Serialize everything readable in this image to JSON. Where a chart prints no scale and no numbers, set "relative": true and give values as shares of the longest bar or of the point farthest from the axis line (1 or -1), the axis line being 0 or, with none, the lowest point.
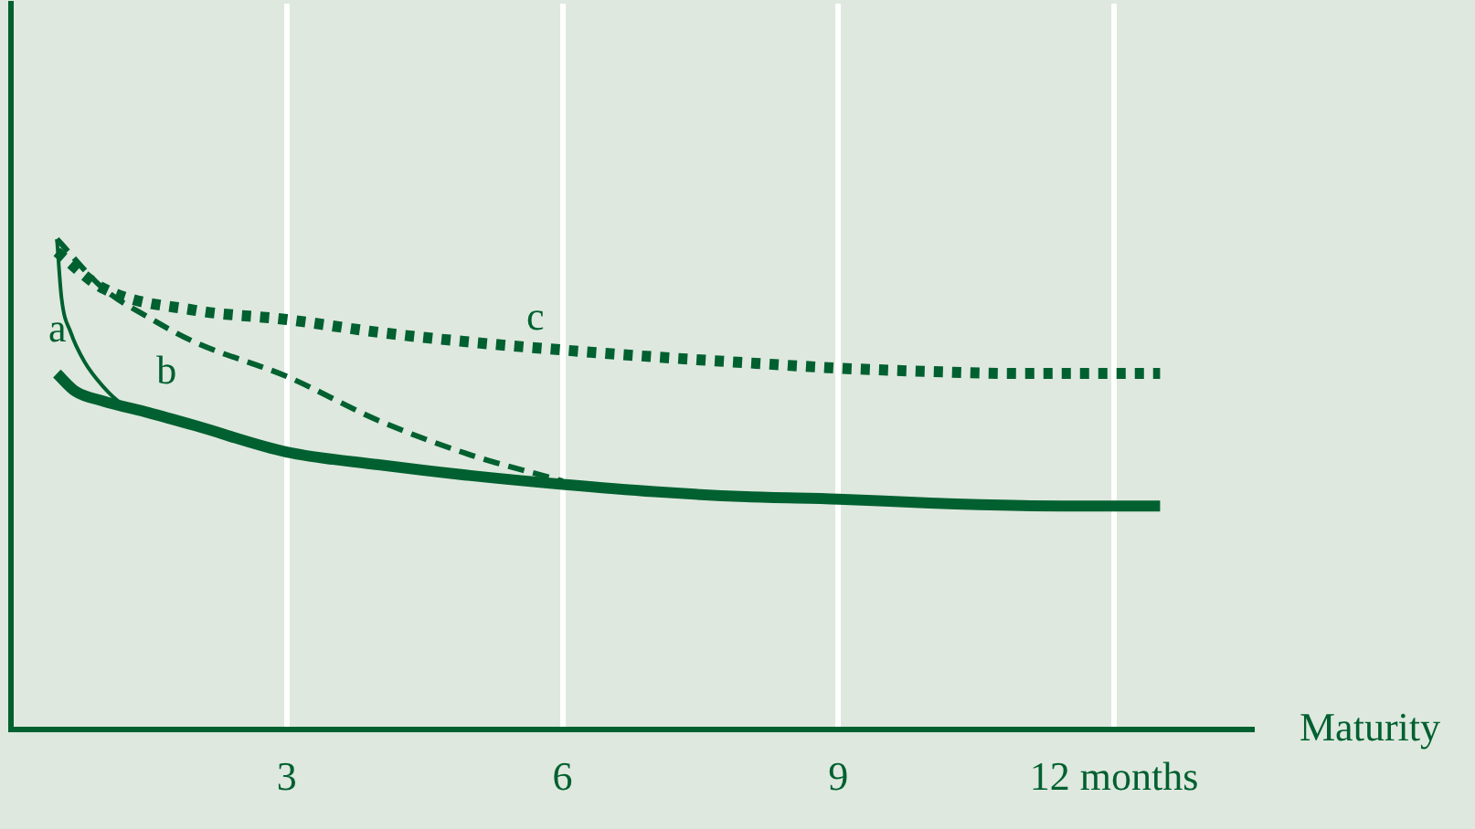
{
  "chart_data": {
    "type": "line",
    "relative": true,
    "xlabel": "Maturity",
    "xlim": [
      0,
      13.5
    ],
    "xticks": [
      3,
      6,
      9,
      {
        "value": 12,
        "label": "12 months"
      }
    ],
    "grid": "x",
    "tick_labels": "x",
    "legend": false,
    "marker": "none",
    "series": [
      {
        "color": "#006030",
        "line_style": "solid",
        "x": [
          0.5,
          0.7,
          1,
          1.5,
          2,
          3,
          4,
          5,
          6,
          7,
          8,
          9,
          10,
          11,
          12,
          12.5
        ],
        "values": [
          0.726,
          0.69,
          0.67,
          0.646,
          0.62,
          0.566,
          0.54,
          0.518,
          0.5,
          0.485,
          0.475,
          0.47,
          0.462,
          0.457,
          0.456,
          0.456
        ]
      },
      {
        "name": "a",
        "color": "#006030",
        "line_style": "solid",
        "x": [
          0.5,
          0.55,
          0.65,
          0.8,
          1,
          1.2,
          1.5
        ],
        "values": [
          1,
          0.88,
          0.81,
          0.75,
          0.7,
          0.665,
          0.64
        ]
      },
      {
        "name": "b",
        "color": "#006030",
        "line_style": "dashed",
        "x": [
          0.5,
          1,
          1.5,
          2,
          3,
          4,
          5,
          6
        ],
        "values": [
          1,
          0.9,
          0.84,
          0.79,
          0.72,
          0.63,
          0.56,
          0.507
        ]
      },
      {
        "name": "c",
        "color": "#006030",
        "line_style": "dotted",
        "x": [
          0.5,
          1,
          2,
          3,
          4,
          5,
          6,
          7,
          8,
          9,
          10,
          11,
          12,
          12.5
        ],
        "values": [
          0.974,
          0.9,
          0.855,
          0.836,
          0.81,
          0.79,
          0.774,
          0.76,
          0.748,
          0.737,
          0.73,
          0.726,
          0.726,
          0.726
        ]
      }
    ]
  }
}
